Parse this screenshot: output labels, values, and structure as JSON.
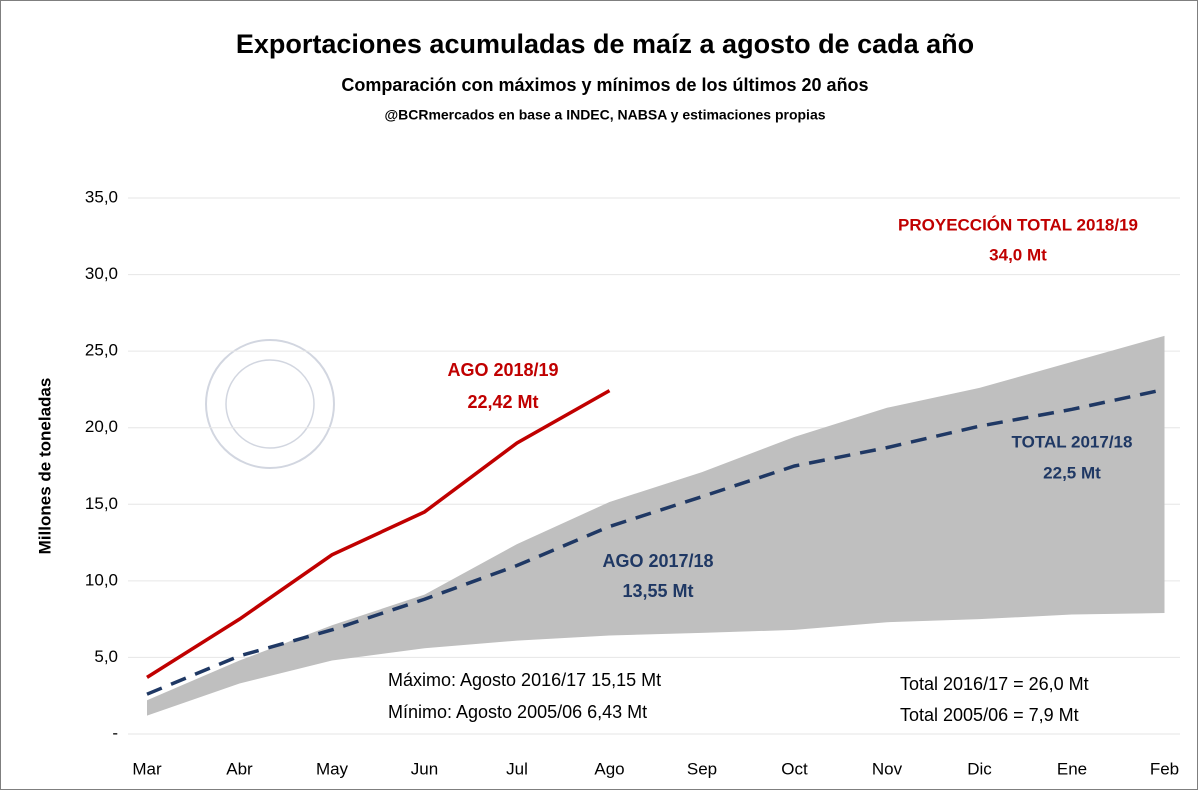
{
  "chart_data": {
    "type": "line",
    "title": "Exportaciones acumuladas de maíz a agosto de cada año",
    "subtitle": "Comparación con máximos y mínimos de los últimos 20 años",
    "source": "@BCRmercados en base a INDEC, NABSA y estimaciones propias",
    "ylabel": "Millones de toneladas",
    "categories": [
      "Mar",
      "Abr",
      "May",
      "Jun",
      "Jul",
      "Ago",
      "Sep",
      "Oct",
      "Nov",
      "Dic",
      "Ene",
      "Feb"
    ],
    "ylim": [
      0,
      35
    ],
    "yticks": [
      {
        "value": 0,
        "label": "-"
      },
      {
        "value": 5,
        "label": "5,0"
      },
      {
        "value": 10,
        "label": "10,0"
      },
      {
        "value": 15,
        "label": "15,0"
      },
      {
        "value": 20,
        "label": "20,0"
      },
      {
        "value": 25,
        "label": "25,0"
      },
      {
        "value": 30,
        "label": "30,0"
      },
      {
        "value": 35,
        "label": "35,0"
      }
    ],
    "grid": true,
    "band": {
      "color": "#bfbfbf",
      "upper": [
        2.2,
        4.8,
        7.1,
        9.1,
        12.4,
        15.15,
        17.1,
        19.4,
        21.3,
        22.6,
        24.3,
        26.0
      ],
      "lower": [
        1.2,
        3.3,
        4.8,
        5.6,
        6.1,
        6.43,
        6.6,
        6.8,
        7.3,
        7.5,
        7.8,
        7.9
      ]
    },
    "series": [
      {
        "color": "#c00000",
        "dashed": false,
        "values": [
          3.7,
          7.5,
          11.7,
          14.5,
          19.0,
          22.42,
          null,
          null,
          null,
          null,
          null,
          null
        ]
      },
      {
        "color": "#1f3864",
        "dashed": true,
        "values": [
          2.6,
          5.1,
          6.8,
          8.8,
          11.0,
          13.55,
          15.5,
          17.5,
          18.7,
          20.1,
          21.2,
          22.5
        ]
      }
    ],
    "annotations": [
      {
        "text": "PROYECCIÓN TOTAL 2018/19",
        "color": "#c00000"
      },
      {
        "text": "34,0 Mt",
        "color": "#c00000"
      },
      {
        "text": "AGO 2018/19",
        "color": "#c00000"
      },
      {
        "text": "22,42 Mt",
        "color": "#c00000"
      },
      {
        "text": "TOTAL 2017/18",
        "color": "#1f3864"
      },
      {
        "text": "22,5 Mt",
        "color": "#1f3864"
      },
      {
        "text": "AGO 2017/18",
        "color": "#1f3864"
      },
      {
        "text": "13,55 Mt",
        "color": "#1f3864"
      },
      {
        "text": "Máximo: Agosto 2016/17 15,15 Mt",
        "color": "#000000"
      },
      {
        "text": "Mínimo: Agosto 2005/06 6,43 Mt",
        "color": "#000000"
      },
      {
        "text": "Total 2016/17 = 26,0 Mt",
        "color": "#000000"
      },
      {
        "text": "Total 2005/06 = 7,9 Mt",
        "color": "#000000"
      }
    ]
  }
}
